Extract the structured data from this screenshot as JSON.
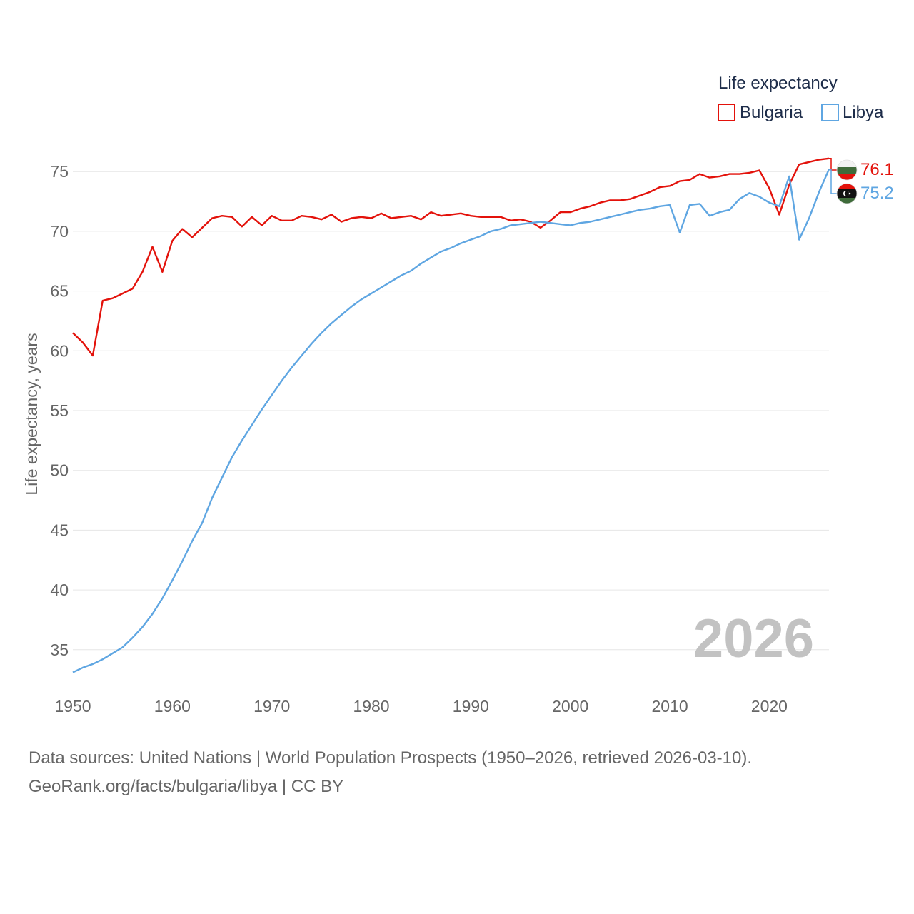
{
  "chart_data": {
    "type": "line",
    "title": "Life expectancy",
    "ylabel": "Life expectancy, years",
    "xlabel": "",
    "xlim": [
      1950,
      2026
    ],
    "ylim": [
      32,
      78
    ],
    "x_ticks": [
      1950,
      1960,
      1970,
      1980,
      1990,
      2000,
      2010,
      2020
    ],
    "y_ticks": [
      35,
      40,
      45,
      50,
      55,
      60,
      65,
      70,
      75
    ],
    "year_label": "2026",
    "legend": {
      "title": "Life expectancy",
      "position": "top-right"
    },
    "x": [
      1950,
      1951,
      1952,
      1953,
      1954,
      1955,
      1956,
      1957,
      1958,
      1959,
      1960,
      1961,
      1962,
      1963,
      1964,
      1965,
      1966,
      1967,
      1968,
      1969,
      1970,
      1971,
      1972,
      1973,
      1974,
      1975,
      1976,
      1977,
      1978,
      1979,
      1980,
      1981,
      1982,
      1983,
      1984,
      1985,
      1986,
      1987,
      1988,
      1989,
      1990,
      1991,
      1992,
      1993,
      1994,
      1995,
      1996,
      1997,
      1998,
      1999,
      2000,
      2001,
      2002,
      2003,
      2004,
      2005,
      2006,
      2007,
      2008,
      2009,
      2010,
      2011,
      2012,
      2013,
      2014,
      2015,
      2016,
      2017,
      2018,
      2019,
      2020,
      2021,
      2022,
      2023,
      2024,
      2025,
      2026
    ],
    "series": [
      {
        "name": "Bulgaria",
        "color": "#e3120b",
        "end_label": "76.1",
        "flag": "bulgaria-flag-icon",
        "values": [
          61.5,
          60.7,
          59.6,
          64.2,
          64.4,
          64.8,
          65.2,
          66.6,
          68.7,
          66.6,
          69.2,
          70.2,
          69.5,
          70.3,
          71.1,
          71.3,
          71.2,
          70.4,
          71.2,
          70.5,
          71.3,
          70.9,
          70.9,
          71.3,
          71.2,
          71.0,
          71.4,
          70.8,
          71.1,
          71.2,
          71.1,
          71.5,
          71.1,
          71.2,
          71.3,
          71.0,
          71.6,
          71.3,
          71.4,
          71.5,
          71.3,
          71.2,
          71.2,
          71.2,
          70.9,
          71.0,
          70.8,
          70.3,
          70.9,
          71.6,
          71.6,
          71.9,
          72.1,
          72.4,
          72.6,
          72.6,
          72.7,
          73.0,
          73.3,
          73.7,
          73.8,
          74.2,
          74.3,
          74.8,
          74.5,
          74.6,
          74.8,
          74.8,
          74.9,
          75.1,
          73.6,
          71.4,
          73.9,
          75.6,
          75.8,
          76.0,
          76.1
        ]
      },
      {
        "name": "Libya",
        "color": "#5fa6e2",
        "end_label": "75.2",
        "flag": "libya-flag-icon",
        "values": [
          33.1,
          33.5,
          33.8,
          34.2,
          34.7,
          35.2,
          36.0,
          36.9,
          38.0,
          39.3,
          40.8,
          42.4,
          44.1,
          45.6,
          47.7,
          49.4,
          51.1,
          52.5,
          53.8,
          55.1,
          56.3,
          57.5,
          58.6,
          59.6,
          60.6,
          61.5,
          62.3,
          63.0,
          63.7,
          64.3,
          64.8,
          65.3,
          65.8,
          66.3,
          66.7,
          67.3,
          67.8,
          68.3,
          68.6,
          69.0,
          69.3,
          69.6,
          70.0,
          70.2,
          70.5,
          70.6,
          70.7,
          70.8,
          70.7,
          70.6,
          70.5,
          70.7,
          70.8,
          71.0,
          71.2,
          71.4,
          71.6,
          71.8,
          71.9,
          72.1,
          72.2,
          69.9,
          72.2,
          72.3,
          71.3,
          71.6,
          71.8,
          72.7,
          73.2,
          72.9,
          72.4,
          72.1,
          74.6,
          69.3,
          71.1,
          73.3,
          75.2
        ]
      }
    ]
  },
  "footer": {
    "sources": "Data sources: United Nations | World Population Prospects (1950–2026, retrieved 2026-03-10).",
    "credit": "GeoRank.org/facts/bulgaria/libya | CC BY"
  }
}
